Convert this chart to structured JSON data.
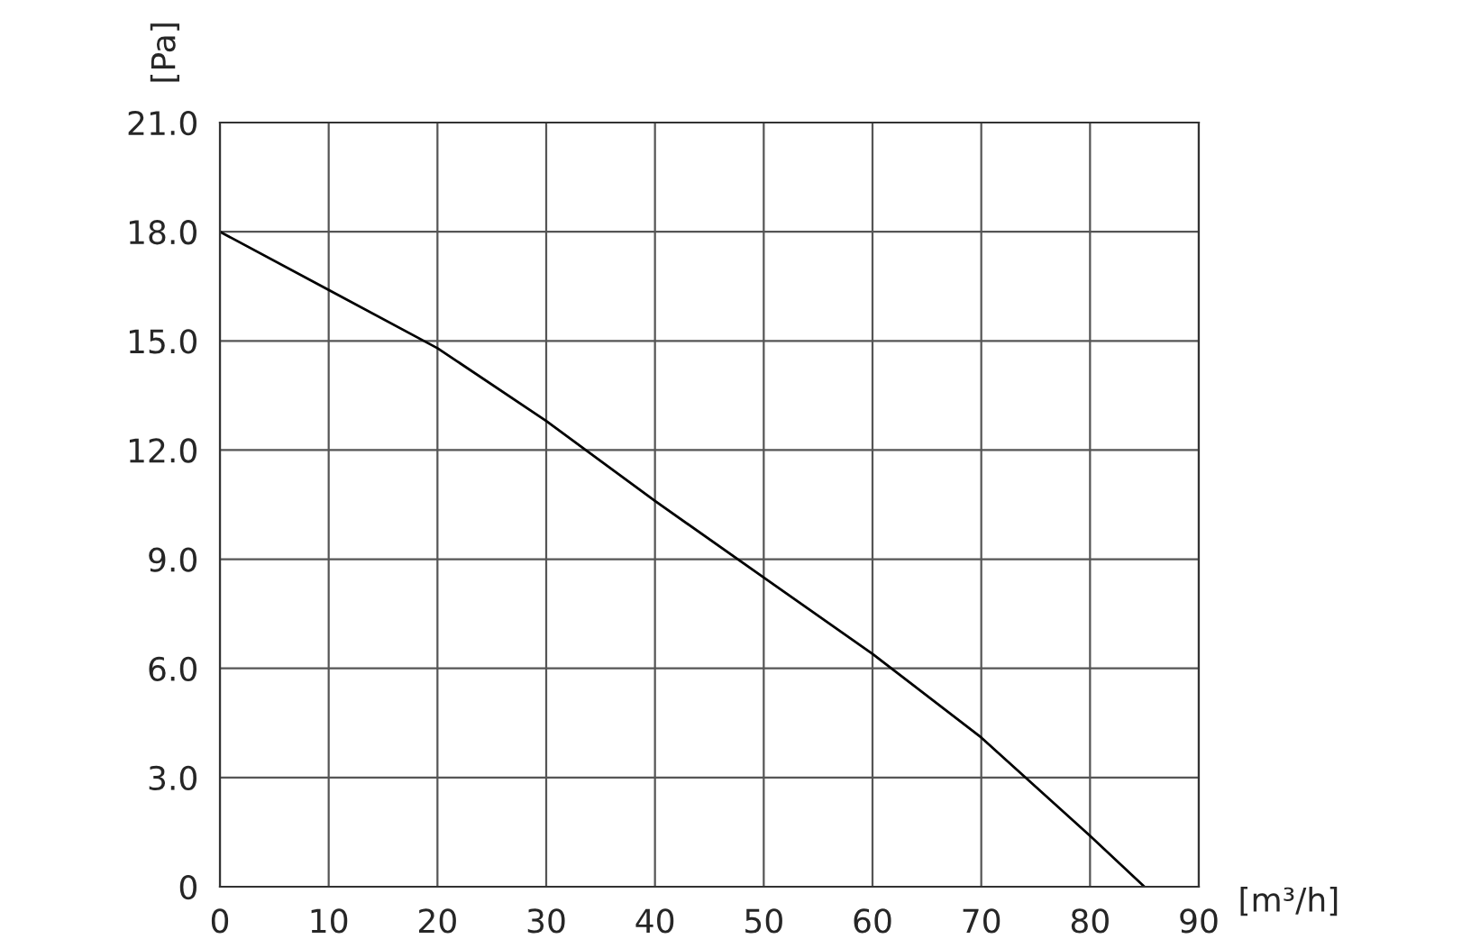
{
  "chart_data": {
    "type": "line",
    "xlabel": "[m³/h]",
    "ylabel": "[Pa]",
    "x": [
      0,
      10,
      20,
      30,
      40,
      50,
      60,
      70,
      80,
      85
    ],
    "series": [
      {
        "color": "#000000",
        "values": [
          18.0,
          16.4,
          14.8,
          12.8,
          10.6,
          8.5,
          6.4,
          4.1,
          1.4,
          0
        ]
      }
    ],
    "xlim": [
      0,
      90
    ],
    "ylim": [
      0,
      21
    ],
    "xticks": [
      0,
      10,
      20,
      30,
      40,
      50,
      60,
      70,
      80,
      90
    ],
    "yticks": [
      0,
      {
        "value": 3,
        "label": "3.0"
      },
      {
        "value": 6,
        "label": "6.0"
      },
      {
        "value": 9,
        "label": "9.0"
      },
      {
        "value": 12,
        "label": "12.0"
      },
      {
        "value": 15,
        "label": "15.0"
      },
      {
        "value": 18,
        "label": "18.0"
      },
      {
        "value": 21,
        "label": "21.0"
      }
    ],
    "grid": true,
    "legend": false,
    "marker": "none",
    "line_style": "solid"
  }
}
